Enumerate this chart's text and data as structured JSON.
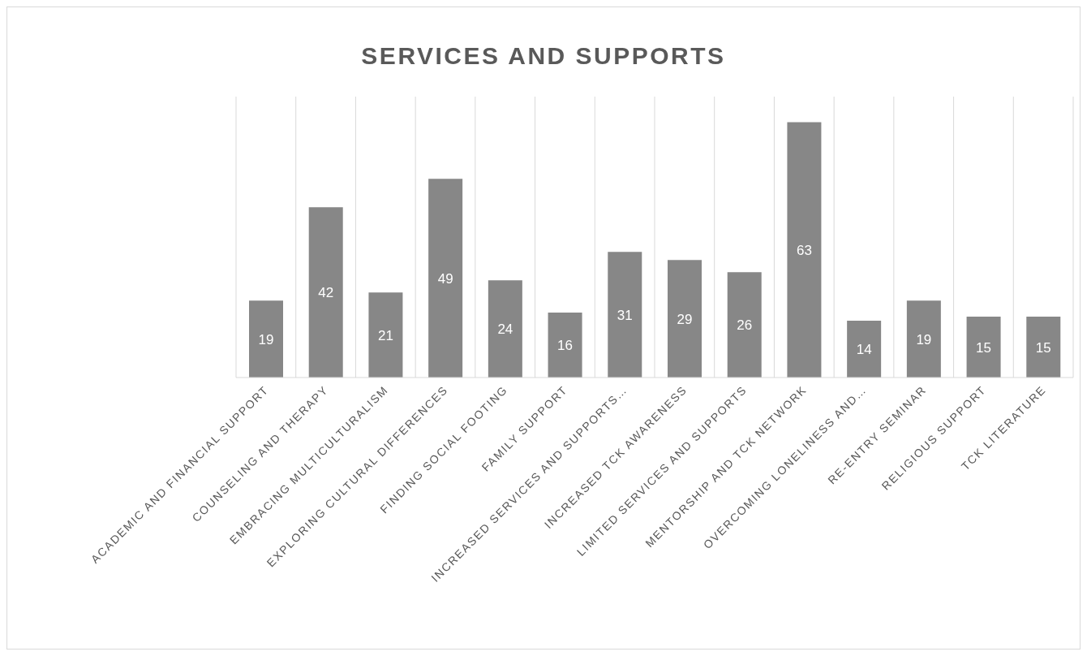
{
  "chart_data": {
    "type": "bar",
    "title": "SERVICES AND SUPPORTS",
    "categories": [
      "ACADEMIC AND FINANCIAL SUPPORT",
      "COUNSELING AND THERAPY",
      "EMBRACING MULTICULTURALISM",
      "EXPLORING CULTURAL DIFFERENCES",
      "FINDING SOCIAL FOOTING",
      "FAMILY SUPPORT",
      "INCREASED SERVICES AND SUPPORTS…",
      "INCREASED TCK AWARENESS",
      "LIMITED SERVICES AND SUPPORTS",
      "MENTORSHIP AND TCK NETWORK",
      "OVERCOMING LONELINESS AND…",
      "RE-ENTRY SEMINAR",
      "RELIGIOUS SUPPORT",
      "TCK LITERATURE"
    ],
    "values": [
      19,
      42,
      21,
      49,
      24,
      16,
      31,
      29,
      26,
      63,
      14,
      19,
      15,
      15
    ],
    "color": "#878787",
    "data_labels": true,
    "grid": "x"
  }
}
